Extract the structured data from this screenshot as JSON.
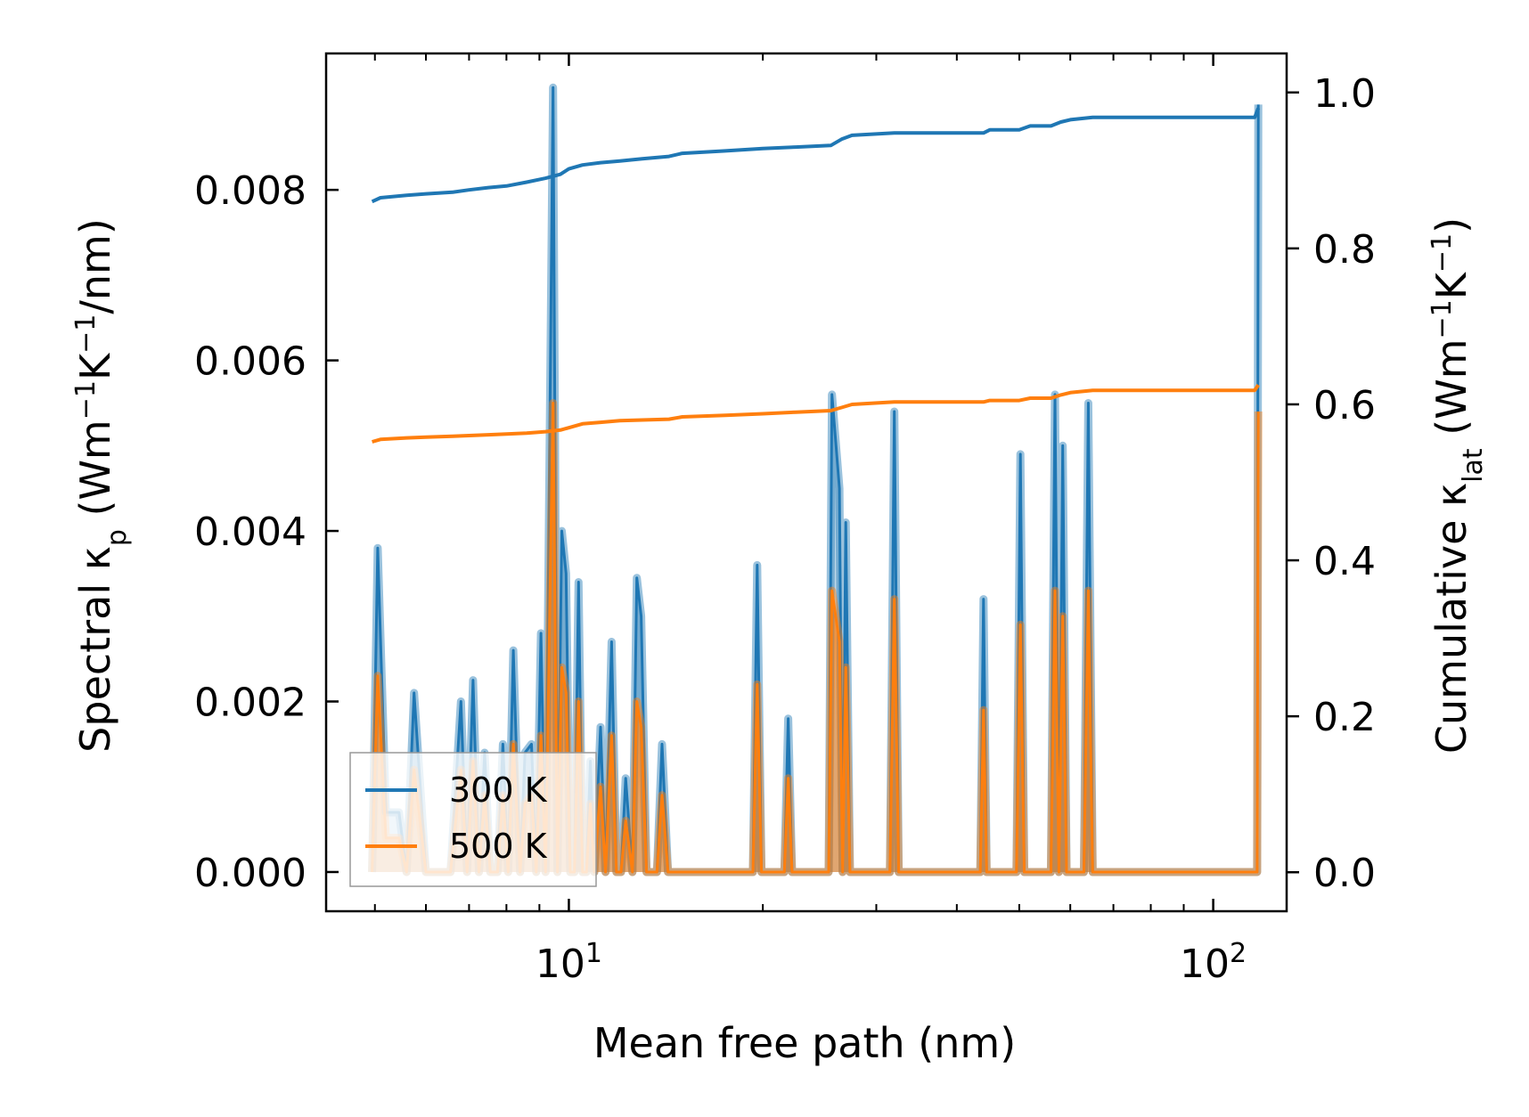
{
  "chart_data": {
    "type": "line",
    "xscale": "log",
    "xlabel": "Mean free path (nm)",
    "xlim": [
      4.2,
      130
    ],
    "x_ticks": [
      {
        "base": "10",
        "exp": "1",
        "value": 10
      },
      {
        "base": "10",
        "exp": "2",
        "value": 100
      }
    ],
    "y_left": {
      "label_main": "Spectral κ",
      "label_sub": "p",
      "label_units_open": " (Wm",
      "label_sup1": "−1",
      "label_mid": "K",
      "label_sup2": "−1",
      "label_end": "/nm)",
      "ylim": [
        -0.00046,
        0.0096
      ],
      "ticks": [
        0.0,
        0.002,
        0.004,
        0.006,
        0.008
      ],
      "tick_labels": [
        "0.000",
        "0.002",
        "0.004",
        "0.006",
        "0.008"
      ]
    },
    "y_right": {
      "label_main": "Cumulative κ",
      "label_sub": "lat",
      "label_units_open": " (Wm",
      "label_sup1": "−1",
      "label_mid": "K",
      "label_sup2": "−1",
      "label_end": ")",
      "ylim": [
        -0.05,
        1.05
      ],
      "ticks": [
        0.0,
        0.2,
        0.4,
        0.6,
        0.8,
        1.0
      ],
      "tick_labels": [
        "0.0",
        "0.2",
        "0.4",
        "0.6",
        "0.8",
        "1.0"
      ]
    },
    "legend": {
      "position": "lower-left",
      "entries": [
        {
          "label": "300 K",
          "color": "#1f77b4"
        },
        {
          "label": "500 K",
          "color": "#ff7f0e"
        }
      ]
    },
    "spectral_series": [
      {
        "name": "300 K",
        "color": "#1f77b4",
        "x": [
          4.95,
          5.05,
          5.2,
          5.35,
          5.45,
          5.6,
          5.75,
          6.0,
          6.3,
          6.55,
          6.8,
          6.95,
          7.1,
          7.25,
          7.4,
          7.55,
          7.75,
          7.9,
          8.05,
          8.2,
          8.4,
          8.55,
          8.75,
          8.9,
          9.05,
          9.2,
          9.45,
          9.6,
          9.75,
          9.9,
          10.05,
          10.2,
          10.35,
          10.5,
          10.65,
          10.8,
          10.95,
          11.2,
          11.4,
          11.65,
          11.85,
          12.05,
          12.25,
          12.55,
          12.75,
          12.95,
          13.2,
          13.45,
          13.7,
          13.95,
          14.25,
          14.55,
          14.75,
          15.05,
          15.3,
          15.55,
          15.85,
          16.1,
          16.35,
          16.65,
          16.9,
          17.2,
          17.5,
          19.3,
          19.6,
          19.9,
          21.6,
          21.9,
          22.2,
          25.3,
          25.6,
          26.3,
          26.6,
          26.9,
          27.3,
          27.6,
          31.5,
          32.0,
          32.5,
          43.5,
          44.0,
          44.5,
          49.5,
          50.2,
          50.9,
          56.0,
          56.8,
          57.6,
          58.4,
          59.2,
          60.0,
          63.0,
          64.0,
          65.0,
          116.0,
          117.0,
          117.5
        ],
        "y": [
          0.0,
          0.0038,
          0.0007,
          0.0007,
          0.0007,
          0.0,
          0.0021,
          0.0,
          0.0,
          0.0,
          0.002,
          0.0,
          0.00225,
          0.0,
          0.0014,
          0.0,
          0.0,
          0.0015,
          0.0,
          0.0026,
          0.0,
          0.0014,
          0.0015,
          0.0,
          0.0028,
          0.0,
          0.0092,
          0.0,
          0.004,
          0.0035,
          0.0,
          0.0,
          0.0034,
          0.0,
          0.0,
          0.0013,
          0.0,
          0.0017,
          0.0,
          0.0027,
          0.0,
          0.0,
          0.0011,
          0.0,
          0.00345,
          0.003,
          0.0,
          0.0,
          0.0,
          0.0015,
          0.0,
          0.0,
          0.0,
          0.0,
          0.0,
          0.0,
          0.0,
          0.0,
          0.0,
          0.0,
          0.0,
          0.0,
          0.0,
          0.0,
          0.0036,
          0.0,
          0.0,
          0.0018,
          0.0,
          0.0,
          0.0056,
          0.0045,
          0.0,
          0.0041,
          0.0,
          0.0,
          0.0,
          0.0054,
          0.0,
          0.0,
          0.0032,
          0.0,
          0.0,
          0.0049,
          0.0,
          0.0,
          0.0056,
          0.0,
          0.005,
          0.0,
          0.0,
          0.0,
          0.0055,
          0.0,
          0.0,
          0.0,
          0.009
        ]
      },
      {
        "name": "500 K",
        "color": "#ff7f0e",
        "x": [
          4.95,
          5.05,
          5.2,
          5.35,
          5.45,
          5.6,
          5.75,
          6.0,
          6.3,
          6.55,
          6.8,
          6.95,
          7.1,
          7.25,
          7.4,
          7.55,
          7.75,
          7.9,
          8.05,
          8.2,
          8.4,
          8.55,
          8.75,
          8.9,
          9.05,
          9.2,
          9.45,
          9.6,
          9.75,
          9.9,
          10.05,
          10.2,
          10.35,
          10.5,
          10.65,
          10.8,
          10.95,
          11.2,
          11.4,
          11.65,
          11.85,
          12.05,
          12.25,
          12.55,
          12.75,
          12.95,
          13.2,
          13.45,
          13.7,
          13.95,
          14.25,
          14.55,
          14.75,
          15.05,
          15.3,
          15.55,
          15.85,
          16.1,
          16.35,
          16.65,
          16.9,
          17.2,
          17.5,
          19.3,
          19.6,
          19.9,
          21.6,
          21.9,
          22.2,
          25.3,
          25.6,
          26.3,
          26.6,
          26.9,
          27.3,
          27.6,
          31.5,
          32.0,
          32.5,
          43.5,
          44.0,
          44.5,
          49.5,
          50.2,
          50.9,
          56.0,
          56.8,
          57.6,
          58.4,
          59.2,
          60.0,
          63.0,
          64.0,
          65.0,
          116.0,
          117.0,
          117.5
        ],
        "y": [
          0.0,
          0.0023,
          0.0004,
          0.0004,
          0.0004,
          0.0,
          0.0012,
          0.0,
          0.0,
          0.0,
          0.0012,
          0.0,
          0.0013,
          0.0,
          0.0009,
          0.0,
          0.0,
          0.0009,
          0.0,
          0.0015,
          0.0,
          0.0008,
          0.0009,
          0.0,
          0.0016,
          0.0,
          0.0055,
          0.0,
          0.0024,
          0.0021,
          0.0,
          0.0,
          0.002,
          0.0,
          0.0,
          0.0008,
          0.0,
          0.001,
          0.0,
          0.0016,
          0.0,
          0.0,
          0.0006,
          0.0,
          0.002,
          0.0017,
          0.0,
          0.0,
          0.0,
          0.0009,
          0.0,
          0.0,
          0.0,
          0.0,
          0.0,
          0.0,
          0.0,
          0.0,
          0.0,
          0.0,
          0.0,
          0.0,
          0.0,
          0.0,
          0.0022,
          0.0,
          0.0,
          0.0011,
          0.0,
          0.0,
          0.0033,
          0.0027,
          0.0,
          0.0024,
          0.0,
          0.0,
          0.0,
          0.0032,
          0.0,
          0.0,
          0.0019,
          0.0,
          0.0,
          0.0029,
          0.0,
          0.0,
          0.0033,
          0.0,
          0.003,
          0.0,
          0.0,
          0.0,
          0.0033,
          0.0,
          0.0,
          0.0,
          0.0054
        ]
      }
    ],
    "cumulative_series": [
      {
        "name": "300 K",
        "color": "#1f77b4",
        "x": [
          4.95,
          5.1,
          5.6,
          6.0,
          6.6,
          7.0,
          7.5,
          8.0,
          8.6,
          9.2,
          9.7,
          10.0,
          10.5,
          11.2,
          12.0,
          13.0,
          14.3,
          15.0,
          17.5,
          20.0,
          22.5,
          25.5,
          26.5,
          27.5,
          32.0,
          44.0,
          45.0,
          50.0,
          52.0,
          56.0,
          58.0,
          60.0,
          65.0,
          116.0,
          117.5
        ],
        "y": [
          0.86,
          0.865,
          0.868,
          0.87,
          0.872,
          0.875,
          0.878,
          0.88,
          0.885,
          0.89,
          0.895,
          0.902,
          0.907,
          0.91,
          0.912,
          0.915,
          0.918,
          0.922,
          0.925,
          0.928,
          0.93,
          0.932,
          0.94,
          0.945,
          0.948,
          0.948,
          0.952,
          0.952,
          0.957,
          0.957,
          0.962,
          0.965,
          0.968,
          0.968,
          0.98
        ]
      },
      {
        "name": "500 K",
        "color": "#ff7f0e",
        "x": [
          4.95,
          5.1,
          5.6,
          6.0,
          6.6,
          7.0,
          7.5,
          8.0,
          8.6,
          9.2,
          9.7,
          10.0,
          10.5,
          11.2,
          12.0,
          13.0,
          14.3,
          15.0,
          17.5,
          20.0,
          22.5,
          25.5,
          26.5,
          27.5,
          32.0,
          44.0,
          45.0,
          50.0,
          52.0,
          56.0,
          58.0,
          60.0,
          65.0,
          116.0,
          117.5
        ],
        "y": [
          0.552,
          0.555,
          0.557,
          0.558,
          0.559,
          0.56,
          0.561,
          0.562,
          0.563,
          0.565,
          0.567,
          0.57,
          0.575,
          0.577,
          0.579,
          0.58,
          0.581,
          0.584,
          0.586,
          0.588,
          0.59,
          0.592,
          0.596,
          0.6,
          0.603,
          0.603,
          0.605,
          0.605,
          0.608,
          0.608,
          0.612,
          0.615,
          0.618,
          0.618,
          0.625
        ]
      }
    ]
  }
}
